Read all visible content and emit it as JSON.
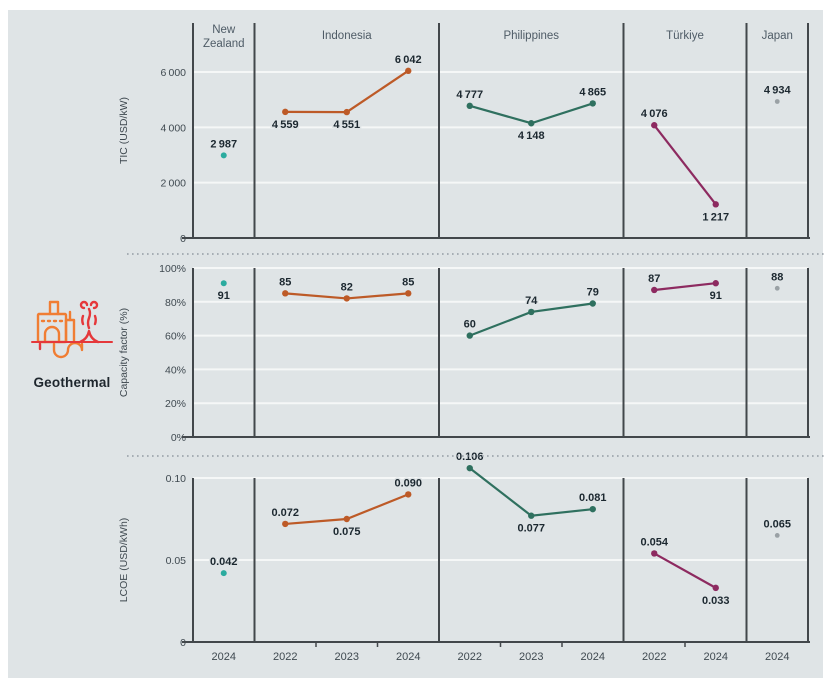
{
  "category": {
    "label": "Geothermal",
    "icon": "geothermal-plant-icon"
  },
  "colors": {
    "chart_bg": "#dfe4e6",
    "gridline": "#f5f7f7",
    "axis": "#42474b",
    "dotted_separator": "#949ca3",
    "header_text": "#4e5b66",
    "tick_text": "#3f4950",
    "value_text": "#1c2830",
    "new_zealand": "#2bab9f",
    "indonesia": "#bd5a27",
    "philippines": "#2f705f",
    "turkiye": "#8d2a60",
    "japan": "#9aa1a5",
    "icon_red": "#e5383b",
    "icon_orange": "#f07d33"
  },
  "countries": [
    {
      "name": "New Zealand",
      "years": [
        "2024"
      ],
      "color_key": "new_zealand"
    },
    {
      "name": "Indonesia",
      "years": [
        "2022",
        "2023",
        "2024"
      ],
      "color_key": "indonesia"
    },
    {
      "name": "Philippines",
      "years": [
        "2022",
        "2023",
        "2024"
      ],
      "color_key": "philippines"
    },
    {
      "name": "Türkiye",
      "years": [
        "2022",
        "2024"
      ],
      "color_key": "turkiye"
    },
    {
      "name": "Japan",
      "years": [
        "2024"
      ],
      "color_key": "japan"
    }
  ],
  "chart_data": [
    {
      "type": "line",
      "title": "",
      "xlabel": "",
      "ylabel": "TIC (USD/kW)",
      "ylim": [
        0,
        6000
      ],
      "grid": true,
      "yticks": [
        {
          "value": 0,
          "label": "0"
        },
        {
          "value": 2000,
          "label": "2 000"
        },
        {
          "value": 4000,
          "label": "4 000"
        },
        {
          "value": 6000,
          "label": "6 000"
        }
      ],
      "series": [
        {
          "country": "New Zealand",
          "points": [
            {
              "year": "2024",
              "value": 2987,
              "label": "2 987",
              "label_pos": "above"
            }
          ]
        },
        {
          "country": "Indonesia",
          "points": [
            {
              "year": "2022",
              "value": 4559,
              "label": "4 559",
              "label_pos": "below"
            },
            {
              "year": "2023",
              "value": 4551,
              "label": "4 551",
              "label_pos": "below"
            },
            {
              "year": "2024",
              "value": 6042,
              "label": "6 042",
              "label_pos": "above"
            }
          ]
        },
        {
          "country": "Philippines",
          "points": [
            {
              "year": "2022",
              "value": 4777,
              "label": "4 777",
              "label_pos": "above"
            },
            {
              "year": "2023",
              "value": 4148,
              "label": "4 148",
              "label_pos": "below"
            },
            {
              "year": "2024",
              "value": 4865,
              "label": "4 865",
              "label_pos": "above"
            }
          ]
        },
        {
          "country": "Türkiye",
          "points": [
            {
              "year": "2022",
              "value": 4076,
              "label": "4 076",
              "label_pos": "above"
            },
            {
              "year": "2024",
              "value": 1217,
              "label": "1 217",
              "label_pos": "below"
            }
          ]
        },
        {
          "country": "Japan",
          "points": [
            {
              "year": "2024",
              "value": 4934,
              "label": "4 934",
              "label_pos": "above"
            }
          ]
        }
      ]
    },
    {
      "type": "line",
      "title": "",
      "xlabel": "",
      "ylabel": "Capacity factor (%)",
      "ylim": [
        0,
        100
      ],
      "grid": true,
      "yticks": [
        {
          "value": 0,
          "label": "0%"
        },
        {
          "value": 20,
          "label": "20%"
        },
        {
          "value": 40,
          "label": "40%"
        },
        {
          "value": 60,
          "label": "60%"
        },
        {
          "value": 80,
          "label": "80%"
        },
        {
          "value": 100,
          "label": "100%"
        }
      ],
      "series": [
        {
          "country": "New Zealand",
          "points": [
            {
              "year": "2024",
              "value": 91,
              "label": "91",
              "label_pos": "below"
            }
          ]
        },
        {
          "country": "Indonesia",
          "points": [
            {
              "year": "2022",
              "value": 85,
              "label": "85",
              "label_pos": "above"
            },
            {
              "year": "2023",
              "value": 82,
              "label": "82",
              "label_pos": "above"
            },
            {
              "year": "2024",
              "value": 85,
              "label": "85",
              "label_pos": "above"
            }
          ]
        },
        {
          "country": "Philippines",
          "points": [
            {
              "year": "2022",
              "value": 60,
              "label": "60",
              "label_pos": "above"
            },
            {
              "year": "2023",
              "value": 74,
              "label": "74",
              "label_pos": "above"
            },
            {
              "year": "2024",
              "value": 79,
              "label": "79",
              "label_pos": "above"
            }
          ]
        },
        {
          "country": "Türkiye",
          "points": [
            {
              "year": "2022",
              "value": 87,
              "label": "87",
              "label_pos": "above"
            },
            {
              "year": "2024",
              "value": 91,
              "label": "91",
              "label_pos": "below"
            }
          ]
        },
        {
          "country": "Japan",
          "points": [
            {
              "year": "2024",
              "value": 88,
              "label": "88",
              "label_pos": "above"
            }
          ]
        }
      ]
    },
    {
      "type": "line",
      "title": "",
      "xlabel": "",
      "ylabel": "LCOE (USD/kWh)",
      "ylim": [
        0,
        0.1
      ],
      "grid": true,
      "yticks": [
        {
          "value": 0,
          "label": "0"
        },
        {
          "value": 0.05,
          "label": "0.05"
        },
        {
          "value": 0.1,
          "label": "0.10"
        }
      ],
      "series": [
        {
          "country": "New Zealand",
          "points": [
            {
              "year": "2024",
              "value": 0.042,
              "label": "0.042",
              "label_pos": "above"
            }
          ]
        },
        {
          "country": "Indonesia",
          "points": [
            {
              "year": "2022",
              "value": 0.072,
              "label": "0.072",
              "label_pos": "above"
            },
            {
              "year": "2023",
              "value": 0.075,
              "label": "0.075",
              "label_pos": "below"
            },
            {
              "year": "2024",
              "value": 0.09,
              "label": "0.090",
              "label_pos": "above"
            }
          ]
        },
        {
          "country": "Philippines",
          "points": [
            {
              "year": "2022",
              "value": 0.106,
              "label": "0.106",
              "label_pos": "above"
            },
            {
              "year": "2023",
              "value": 0.077,
              "label": "0.077",
              "label_pos": "below"
            },
            {
              "year": "2024",
              "value": 0.081,
              "label": "0.081",
              "label_pos": "above"
            }
          ]
        },
        {
          "country": "Türkiye",
          "points": [
            {
              "year": "2022",
              "value": 0.054,
              "label": "0.054",
              "label_pos": "above"
            },
            {
              "year": "2024",
              "value": 0.033,
              "label": "0.033",
              "label_pos": "below"
            }
          ]
        },
        {
          "country": "Japan",
          "points": [
            {
              "year": "2024",
              "value": 0.065,
              "label": "0.065",
              "label_pos": "above"
            }
          ]
        }
      ]
    }
  ]
}
